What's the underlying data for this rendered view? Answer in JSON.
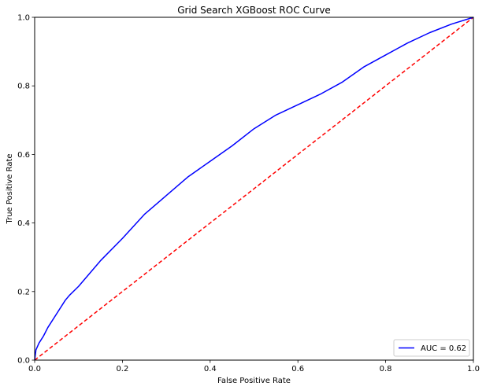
{
  "chart_data": {
    "type": "line",
    "title": "Grid Search XGBoost ROC Curve",
    "xlabel": "False Positive Rate",
    "ylabel": "True Positive Rate",
    "xlim": [
      0,
      1
    ],
    "ylim": [
      0,
      1
    ],
    "x_ticks": [
      "0.0",
      "0.2",
      "0.4",
      "0.6",
      "0.8",
      "1.0"
    ],
    "y_ticks": [
      "0.0",
      "0.2",
      "0.4",
      "0.6",
      "0.8",
      "1.0"
    ],
    "grid": false,
    "legend_position": "lower-right",
    "series": [
      {
        "name": "AUC = 0.62",
        "color": "#0000ff",
        "style": "solid",
        "x": [
          0.0,
          0.003,
          0.01,
          0.02,
          0.03,
          0.05,
          0.07,
          0.08,
          0.1,
          0.15,
          0.2,
          0.25,
          0.3,
          0.35,
          0.4,
          0.45,
          0.5,
          0.55,
          0.6,
          0.65,
          0.7,
          0.75,
          0.8,
          0.85,
          0.9,
          0.95,
          1.0
        ],
        "y": [
          0.0,
          0.03,
          0.05,
          0.07,
          0.095,
          0.135,
          0.175,
          0.19,
          0.215,
          0.29,
          0.355,
          0.425,
          0.48,
          0.535,
          0.58,
          0.625,
          0.675,
          0.715,
          0.745,
          0.775,
          0.81,
          0.855,
          0.89,
          0.925,
          0.955,
          0.98,
          1.0
        ]
      },
      {
        "name": "",
        "color": "#ff0000",
        "style": "dashed",
        "x": [
          0,
          1
        ],
        "y": [
          0,
          1
        ]
      }
    ]
  }
}
